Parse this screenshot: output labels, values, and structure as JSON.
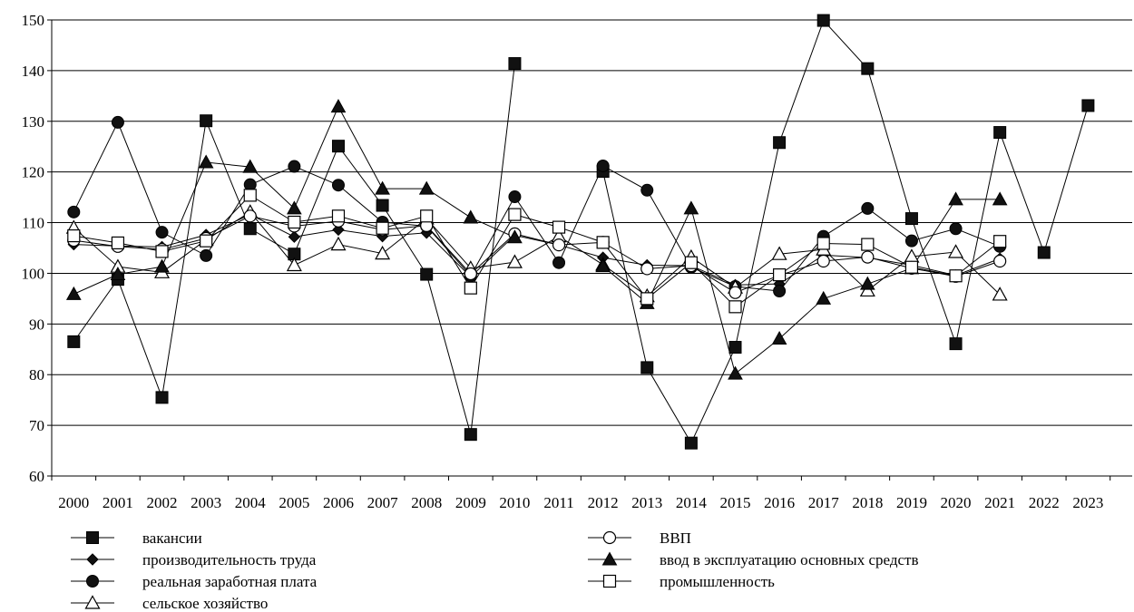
{
  "chart_data": {
    "type": "line",
    "title": "",
    "xlabel": "",
    "ylabel": "",
    "ylim": [
      60,
      150
    ],
    "yticks": [
      60,
      70,
      80,
      90,
      100,
      110,
      120,
      130,
      140,
      150
    ],
    "grid": "horizontal",
    "legend_position": "bottom",
    "x": [
      "2000",
      "2001",
      "2002",
      "2003",
      "2004",
      "2005",
      "2006",
      "2007",
      "2008",
      "2009",
      "2010",
      "2011",
      "2012",
      "2013",
      "2014",
      "2015",
      "2016",
      "2017",
      "2018",
      "2019",
      "2020",
      "2021",
      "2022",
      "2023"
    ],
    "series": [
      {
        "name": "вакансии",
        "marker": "square-filled",
        "values": [
          86.5,
          98.8,
          75.5,
          130.1,
          108.8,
          103.8,
          125.1,
          113.4,
          99.8,
          68.2,
          141.4,
          null,
          120.1,
          81.4,
          66.5,
          85.4,
          125.8,
          149.9,
          140.4,
          110.8,
          86.1,
          127.8,
          104.1,
          133.1
        ]
      },
      {
        "name": "производительность труда",
        "marker": "diamond-filled",
        "values": [
          105.7,
          105.4,
          105.2,
          107.6,
          111.6,
          107.2,
          108.6,
          107.3,
          108.0,
          99.3,
          107.5,
          105.6,
          103.1,
          101.6,
          101.5,
          97.7,
          97.9,
          103.6,
          103.1,
          101.6,
          99.6,
          102.9,
          null,
          null
        ]
      },
      {
        "name": "реальная заработная плата",
        "marker": "circle-filled",
        "values": [
          112.1,
          129.8,
          108.1,
          103.5,
          117.5,
          121.1,
          117.4,
          110.1,
          109.3,
          99.5,
          115.1,
          102.1,
          121.2,
          116.4,
          101.2,
          97.4,
          96.5,
          107.3,
          112.8,
          106.4,
          108.8,
          105.3,
          null,
          null
        ]
      },
      {
        "name": "сельское хозяйство",
        "marker": "triangle-open",
        "values": [
          109.0,
          101.3,
          100.2,
          106.6,
          112.1,
          101.6,
          105.7,
          103.9,
          110.8,
          101.0,
          102.2,
          107.3,
          101.7,
          95.5,
          103.2,
          97.2,
          103.8,
          104.7,
          96.6,
          103.3,
          104.2,
          95.8,
          null,
          null
        ]
      },
      {
        "name": "ВВП",
        "marker": "circle-open",
        "values": [
          106.5,
          105.3,
          104.7,
          106.9,
          111.3,
          109.3,
          110.3,
          108.6,
          109.4,
          99.9,
          107.8,
          105.6,
          106.1,
          100.9,
          101.5,
          96.2,
          99.6,
          102.4,
          103.2,
          101.0,
          99.4,
          102.4,
          null,
          null
        ]
      },
      {
        "name": "ввод в эксплуатацию основных средств",
        "marker": "triangle-filled",
        "values": [
          95.9,
          99.8,
          101.3,
          121.9,
          121.0,
          112.8,
          132.9,
          116.7,
          116.7,
          111.0,
          107.1,
          null,
          101.4,
          94.1,
          112.8,
          80.2,
          87.1,
          95.0,
          97.9,
          101.0,
          114.6,
          114.6,
          null,
          null
        ]
      },
      {
        "name": "промышленность",
        "marker": "square-open",
        "values": [
          107.4,
          106.0,
          104.3,
          106.4,
          115.4,
          110.1,
          111.3,
          108.9,
          111.3,
          97.1,
          111.6,
          109.1,
          106.1,
          95.0,
          102.1,
          93.4,
          99.7,
          105.9,
          105.7,
          101.2,
          99.5,
          106.3,
          null,
          null
        ]
      }
    ]
  }
}
